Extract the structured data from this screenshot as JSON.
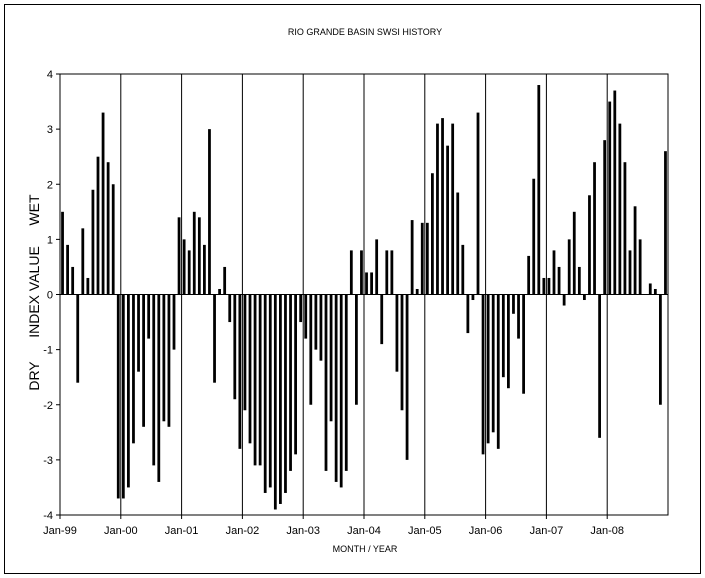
{
  "chart_data": {
    "type": "bar",
    "title": "RIO GRANDE BASIN SWSI HISTORY",
    "xlabel": "MONTH / YEAR",
    "ylabel_dry": "DRY",
    "ylabel_main": "INDEX VALUE",
    "ylabel_wet": "WET",
    "ylim": [
      -4,
      4
    ],
    "yticks": [
      4,
      3,
      2,
      1,
      0,
      -1,
      -2,
      -3,
      -4
    ],
    "xticks": [
      "Jan-99",
      "Jan-00",
      "Jan-01",
      "Jan-02",
      "Jan-03",
      "Jan-04",
      "Jan-05",
      "Jan-06",
      "Jan-07",
      "Jan-08"
    ],
    "start_label": "Jan-99",
    "months_total": 120,
    "grid": "vertical lines at each January",
    "bar_color": "#000000",
    "series": [
      {
        "values": [
          1.5,
          0.9,
          0.5,
          -1.6,
          1.2,
          0.3,
          1.9,
          2.5,
          3.3,
          2.4,
          2.0,
          -3.7,
          -3.7,
          -3.5,
          -2.7,
          -1.4,
          -2.4,
          -0.8,
          -3.1,
          -3.4,
          -2.3,
          -2.4,
          -1.0,
          1.4,
          1.0,
          0.8,
          1.5,
          1.4,
          0.9,
          3.0,
          -1.6,
          0.1,
          0.5,
          -0.5,
          -1.9,
          -2.8,
          -2.1,
          -2.7,
          -3.1,
          -3.1,
          -3.6,
          -3.5,
          -3.9,
          -3.8,
          -3.6,
          -3.2,
          -2.9,
          -0.5,
          -0.8,
          -2.0,
          -1.0,
          -1.2,
          -3.2,
          -2.3,
          -3.4,
          -3.5,
          -3.2,
          0.8,
          -2.0,
          0.8,
          0.4,
          0.4,
          1.0,
          -0.9,
          0.8,
          0.8,
          -1.4,
          -2.1,
          -3.0,
          1.35,
          0.1,
          1.3,
          1.3,
          2.2,
          3.1,
          3.2,
          2.7,
          3.1,
          1.85,
          0.9,
          -0.7,
          -0.1,
          3.3,
          -2.9,
          -2.7,
          -2.5,
          -2.8,
          -1.5,
          -1.7,
          -0.35,
          -0.8,
          -1.8,
          0.7,
          2.1,
          3.8,
          0.3,
          0.3,
          0.8,
          0.5,
          -0.2,
          1.0,
          1.5,
          0.5,
          -0.1,
          1.8,
          2.4,
          -2.6,
          2.8,
          3.5,
          3.7,
          3.1,
          2.4,
          0.8,
          1.6,
          1.0,
          0.0,
          0.2,
          0.1,
          -2.0,
          2.6
        ]
      }
    ]
  }
}
